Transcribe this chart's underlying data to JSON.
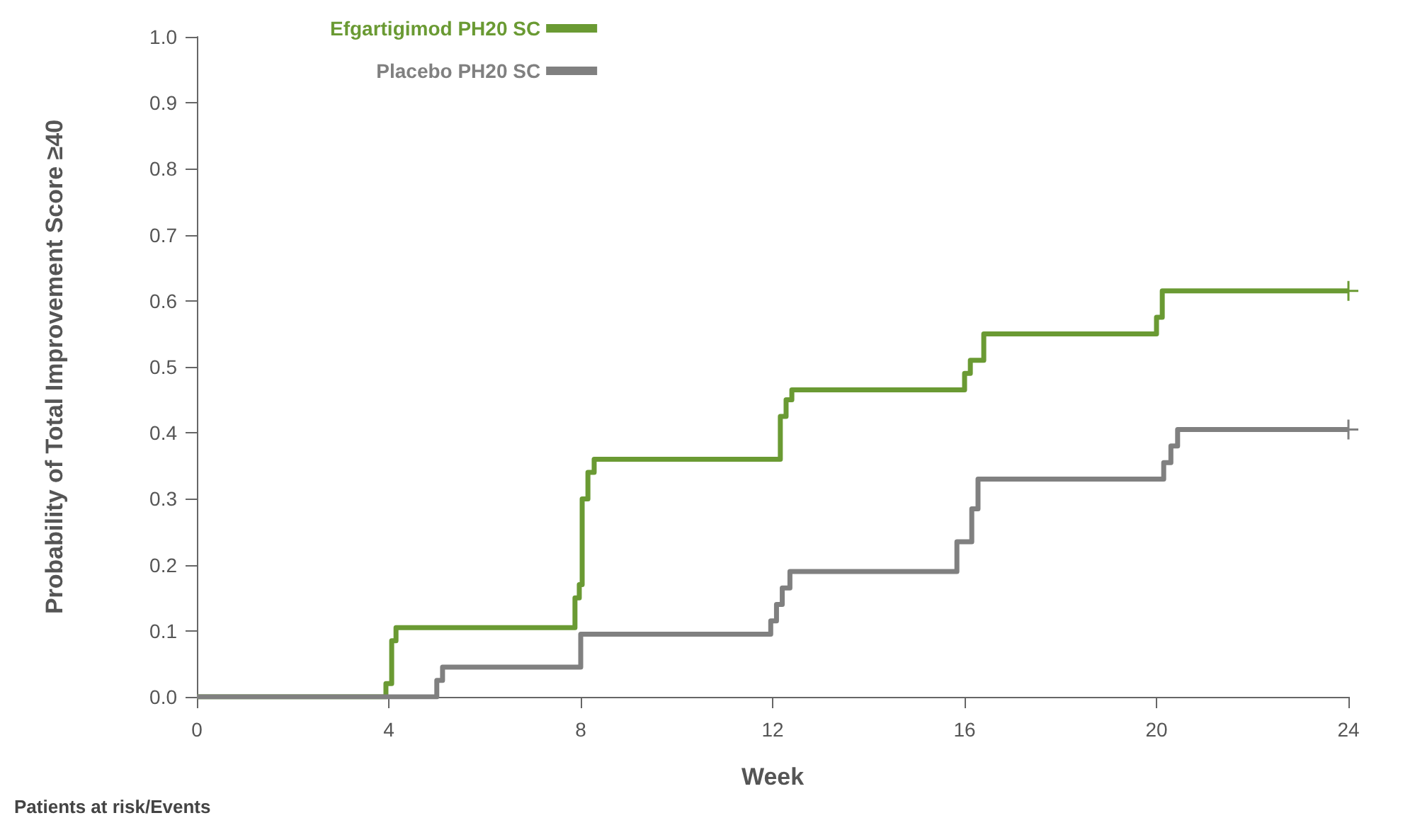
{
  "chart_data": {
    "type": "step",
    "xlabel": "Week",
    "ylabel": "Probability of Total Improvement Score ≥40",
    "series": [
      {
        "name": "Efgartigimod PH20 SC",
        "color": "#6a9a33",
        "x": [
          0,
          3.94,
          4.06,
          4.15,
          7.88,
          7.97,
          8.03,
          8.15,
          8.28,
          12.16,
          12.28,
          12.4,
          16.0,
          16.12,
          16.4,
          20.0,
          20.12,
          24
        ],
        "values": [
          0,
          0.02,
          0.085,
          0.105,
          0.15,
          0.17,
          0.3,
          0.34,
          0.36,
          0.425,
          0.45,
          0.465,
          0.49,
          0.51,
          0.55,
          0.575,
          0.615,
          0.615
        ]
      },
      {
        "name": "Placebo PH20 SC",
        "color": "#808080",
        "x": [
          0,
          5.0,
          5.12,
          8.0,
          11.96,
          12.08,
          12.2,
          12.36,
          15.84,
          16.15,
          16.28,
          20.15,
          20.3,
          20.44,
          24
        ],
        "values": [
          0,
          0.025,
          0.045,
          0.095,
          0.115,
          0.14,
          0.165,
          0.19,
          0.235,
          0.285,
          0.33,
          0.355,
          0.38,
          0.405,
          0.405
        ]
      }
    ],
    "xlim": [
      0,
      24
    ],
    "xticks": [
      0,
      4,
      8,
      12,
      16,
      20,
      24
    ],
    "ylim": [
      0,
      1
    ],
    "yticks": [
      {
        "value": 0,
        "label": "0.0"
      },
      {
        "value": 0.1,
        "label": "0.1"
      },
      {
        "value": 0.2,
        "label": "0.2"
      },
      {
        "value": 0.3,
        "label": "0.3"
      },
      {
        "value": 0.4,
        "label": "0.4"
      },
      {
        "value": 0.5,
        "label": "0.5"
      },
      {
        "value": 0.6,
        "label": "0.6"
      },
      {
        "value": 0.7,
        "label": "0.7"
      },
      {
        "value": 0.8,
        "label": "0.8"
      },
      {
        "value": 0.9,
        "label": "0.9"
      },
      {
        "value": 1,
        "label": "1.0"
      }
    ],
    "grid": false,
    "legend": "top",
    "line_style": "solid",
    "annotations": [
      "Patients at risk/Events"
    ]
  }
}
